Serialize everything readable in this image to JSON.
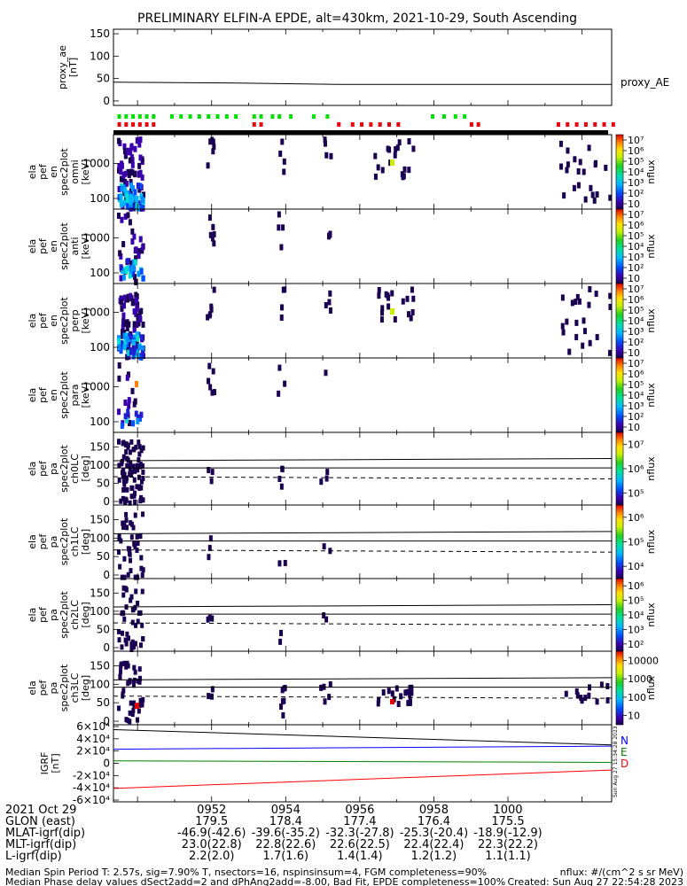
{
  "title": "PRELIMINARY ELFIN-A EPDE, alt=430km, 2021-10-29, South Ascending",
  "colors": {
    "raw_red": "#e8000b",
    "raw_green": "#00d000",
    "B_N": "#0000ff",
    "B_E": "#008000",
    "B_D": "#ff0000"
  },
  "chart_data": [
    {
      "type": "line",
      "panel": "proxy_ae",
      "ylabel": "proxy_ae [nT]",
      "yticks": [
        "0",
        "50",
        "100",
        "150"
      ],
      "ylim": [
        -10,
        160
      ],
      "legend": "proxy_AE",
      "series": [
        {
          "name": "proxy_AE",
          "x": [
            0,
            0.25,
            0.45,
            1.0
          ],
          "values": [
            42,
            40,
            37,
            37
          ]
        }
      ]
    },
    {
      "type": "heatmap",
      "panel": "raw",
      "description_bars": "state markers",
      "green_x": [
        0.01,
        0.04,
        0.07,
        0.1,
        0.13,
        0.16,
        0.24,
        0.28,
        0.32,
        0.36,
        0.4,
        0.44,
        0.48,
        0.52,
        0.6,
        0.63,
        0.68,
        0.71,
        0.76,
        0.86,
        0.92,
        1.38,
        1.43,
        1.48,
        1.52
      ],
      "red_x": [
        0.01,
        0.04,
        0.07,
        0.1,
        0.13,
        0.16,
        0.6,
        0.63,
        0.97,
        1.03,
        1.07,
        1.11,
        1.15,
        1.19,
        1.23,
        1.55,
        1.58,
        1.93,
        1.97,
        2.01,
        2.05,
        2.09,
        2.13,
        2.17
      ]
    },
    {
      "type": "heatmap",
      "panel": "omni",
      "ylabel": [
        "ela",
        "pef",
        "en",
        "spec2plot",
        "omni",
        "[keV]"
      ],
      "yticks": [
        "100",
        "1000"
      ],
      "ylog": true,
      "colorbar": {
        "label": "nflux",
        "ticks": [
          "10",
          "10²",
          "10³",
          "10⁴",
          "10⁵",
          "10⁶",
          "10⁷"
        ]
      }
    },
    {
      "type": "heatmap",
      "panel": "anti",
      "ylabel": [
        "ela",
        "pef",
        "en",
        "spec2plot",
        "anti",
        "[keV]"
      ],
      "yticks": [
        "100",
        "1000"
      ],
      "ylog": true,
      "colorbar": {
        "label": "nflux",
        "ticks": [
          "10",
          "10²",
          "10³",
          "10⁴",
          "10⁵",
          "10⁶",
          "10⁷"
        ]
      }
    },
    {
      "type": "heatmap",
      "panel": "perp",
      "ylabel": [
        "ela",
        "pef",
        "en",
        "spec2plot",
        "perp",
        "[keV]"
      ],
      "yticks": [
        "100",
        "1000"
      ],
      "ylog": true,
      "colorbar": {
        "label": "nflux",
        "ticks": [
          "10",
          "10²",
          "10³",
          "10⁴",
          "10⁵",
          "10⁶",
          "10⁷"
        ]
      }
    },
    {
      "type": "heatmap",
      "panel": "para",
      "ylabel": [
        "ela",
        "pef",
        "en",
        "spec2plot",
        "para",
        "[keV]"
      ],
      "yticks": [
        "100",
        "1000"
      ],
      "ylog": true,
      "colorbar": {
        "label": "nflux",
        "ticks": [
          "10",
          "10²",
          "10³",
          "10⁴",
          "10⁵",
          "10⁶",
          "10⁷"
        ]
      }
    },
    {
      "type": "heatmap",
      "panel": "ch0LC",
      "ylabel": [
        "ela",
        "pef",
        "pa",
        "spec2plot",
        "ch0LC",
        "[deg]"
      ],
      "yticks": [
        "0",
        "50",
        "100",
        "150"
      ],
      "ylim": [
        0,
        180
      ],
      "colorbar": {
        "label": "nflux",
        "ticks": [
          "10⁵",
          "10⁶",
          "10⁷"
        ]
      }
    },
    {
      "type": "heatmap",
      "panel": "ch1LC",
      "ylabel": [
        "ela",
        "pef",
        "pa",
        "spec2plot",
        "ch1LC",
        "[deg]"
      ],
      "yticks": [
        "0",
        "50",
        "100",
        "150"
      ],
      "ylim": [
        0,
        180
      ],
      "colorbar": {
        "label": "nflux",
        "ticks": [
          "10⁴",
          "10⁵",
          "10⁶"
        ]
      }
    },
    {
      "type": "heatmap",
      "panel": "ch2LC",
      "ylabel": [
        "ela",
        "pef",
        "pa",
        "spec2plot",
        "ch2LC",
        "[deg]"
      ],
      "yticks": [
        "0",
        "50",
        "100",
        "150"
      ],
      "ylim": [
        0,
        180
      ],
      "colorbar": {
        "label": "nflux",
        "ticks": [
          "10²",
          "10³",
          "10⁴",
          "10⁵",
          "10⁶"
        ]
      }
    },
    {
      "type": "heatmap",
      "panel": "ch3LC",
      "ylabel": [
        "ela",
        "pef",
        "pa",
        "spec2plot",
        "ch3LC",
        "[deg]"
      ],
      "yticks": [
        "0",
        "50",
        "100",
        "150"
      ],
      "ylim": [
        0,
        180
      ],
      "colorbar": {
        "label": "nflux",
        "ticks": [
          "10",
          "100",
          "1000",
          "10000"
        ]
      }
    },
    {
      "type": "line",
      "panel": "IGRF",
      "ylabel": [
        "IGRF",
        "[nT]"
      ],
      "yticks": [
        "-6×10⁴",
        "-4×10⁴",
        "-2×10⁴",
        "0",
        "2×10⁴",
        "4×10⁴",
        "6×10⁴"
      ],
      "ylim": [
        -60000,
        60000
      ],
      "side_note": "Sun Aug 27 15:34:28 2023",
      "series": [
        {
          "name": "N",
          "x": [
            0,
            1
          ],
          "values": [
            23000,
            28000
          ]
        },
        {
          "name": "E",
          "x": [
            0,
            1
          ],
          "values": [
            4000,
            1500
          ]
        },
        {
          "name": "D",
          "x": [
            0,
            1
          ],
          "values": [
            -41000,
            -11000
          ]
        },
        {
          "name": "",
          "x": [
            0,
            1
          ],
          "values": [
            55000,
            30000
          ]
        }
      ]
    }
  ],
  "xaxis": {
    "row_labels": [
      "2021 Oct 29",
      "GLON (east)",
      "MLAT-igrf(dip)",
      "MLT-igrf(dip)",
      "L-igrf(dip)"
    ],
    "columns": [
      {
        "time": "0952",
        "glon": "179.5",
        "mlat": "-46.9(-42.6)",
        "mlt": "23.0(22.8)",
        "l": "2.2(2.0)"
      },
      {
        "time": "0954",
        "glon": "178.4",
        "mlat": "-39.6(-35.2)",
        "mlt": "22.8(22.6)",
        "l": "1.7(1.6)"
      },
      {
        "time": "0956",
        "glon": "177.4",
        "mlat": "-32.3(-27.8)",
        "mlt": "22.6(22.5)",
        "l": "1.4(1.4)"
      },
      {
        "time": "0958",
        "glon": "176.4",
        "mlat": "-25.3(-20.4)",
        "mlt": "22.4(22.4)",
        "l": "1.2(1.2)"
      },
      {
        "time": "1000",
        "glon": "175.5",
        "mlat": "-18.9(-12.9)",
        "mlt": "22.3(22.2)",
        "l": "1.1(1.1)"
      }
    ]
  },
  "footer": {
    "line1": "Median Spin Period T: 2.57s, sig=7.90% T, nsectors=16, nspinsinsum=4, FGM completeness=90%",
    "line2": "Median Phase delay values dSect2add=2 and dPhAng2add=-8.00, Bad Fit, EPDE completeness=100%",
    "right1": "nflux: #/(cm^2 s sr MeV)",
    "right2": "Created: Sun Aug 27 22:54:28 2023"
  }
}
